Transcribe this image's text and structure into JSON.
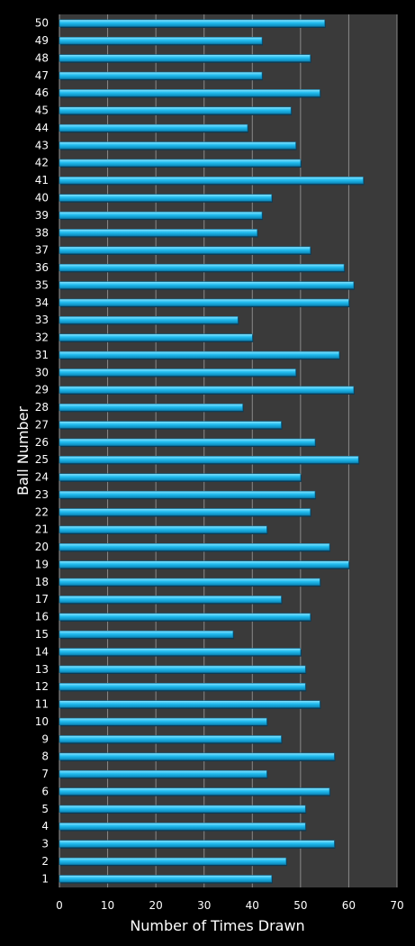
{
  "chart_data": {
    "type": "bar",
    "orientation": "horizontal",
    "title": "",
    "xlabel": "Number of Times Drawn",
    "ylabel": "Ball Number",
    "xlim": [
      0,
      70
    ],
    "xticks": [
      0,
      10,
      20,
      30,
      40,
      50,
      60,
      70
    ],
    "grid": true,
    "categories": [
      "1",
      "2",
      "3",
      "4",
      "5",
      "6",
      "7",
      "8",
      "9",
      "10",
      "11",
      "12",
      "13",
      "14",
      "15",
      "16",
      "17",
      "18",
      "19",
      "20",
      "21",
      "22",
      "23",
      "24",
      "25",
      "26",
      "27",
      "28",
      "29",
      "30",
      "31",
      "32",
      "33",
      "34",
      "35",
      "36",
      "37",
      "38",
      "39",
      "40",
      "41",
      "42",
      "43",
      "44",
      "45",
      "46",
      "47",
      "48",
      "49",
      "50"
    ],
    "values": [
      44,
      47,
      57,
      51,
      51,
      56,
      43,
      57,
      46,
      43,
      54,
      51,
      51,
      50,
      36,
      52,
      46,
      54,
      60,
      56,
      43,
      52,
      53,
      50,
      62,
      53,
      46,
      38,
      61,
      49,
      58,
      40,
      37,
      60,
      61,
      59,
      52,
      41,
      42,
      44,
      63,
      50,
      49,
      39,
      48,
      54,
      42,
      52,
      42,
      55
    ]
  },
  "colors": {
    "background": "#000000",
    "plot_background": "#3a3a3a",
    "bar": "#1ab4e8",
    "bar_highlight": "#6fdcff",
    "grid": "#8a8a8a",
    "text": "#ffffff"
  }
}
